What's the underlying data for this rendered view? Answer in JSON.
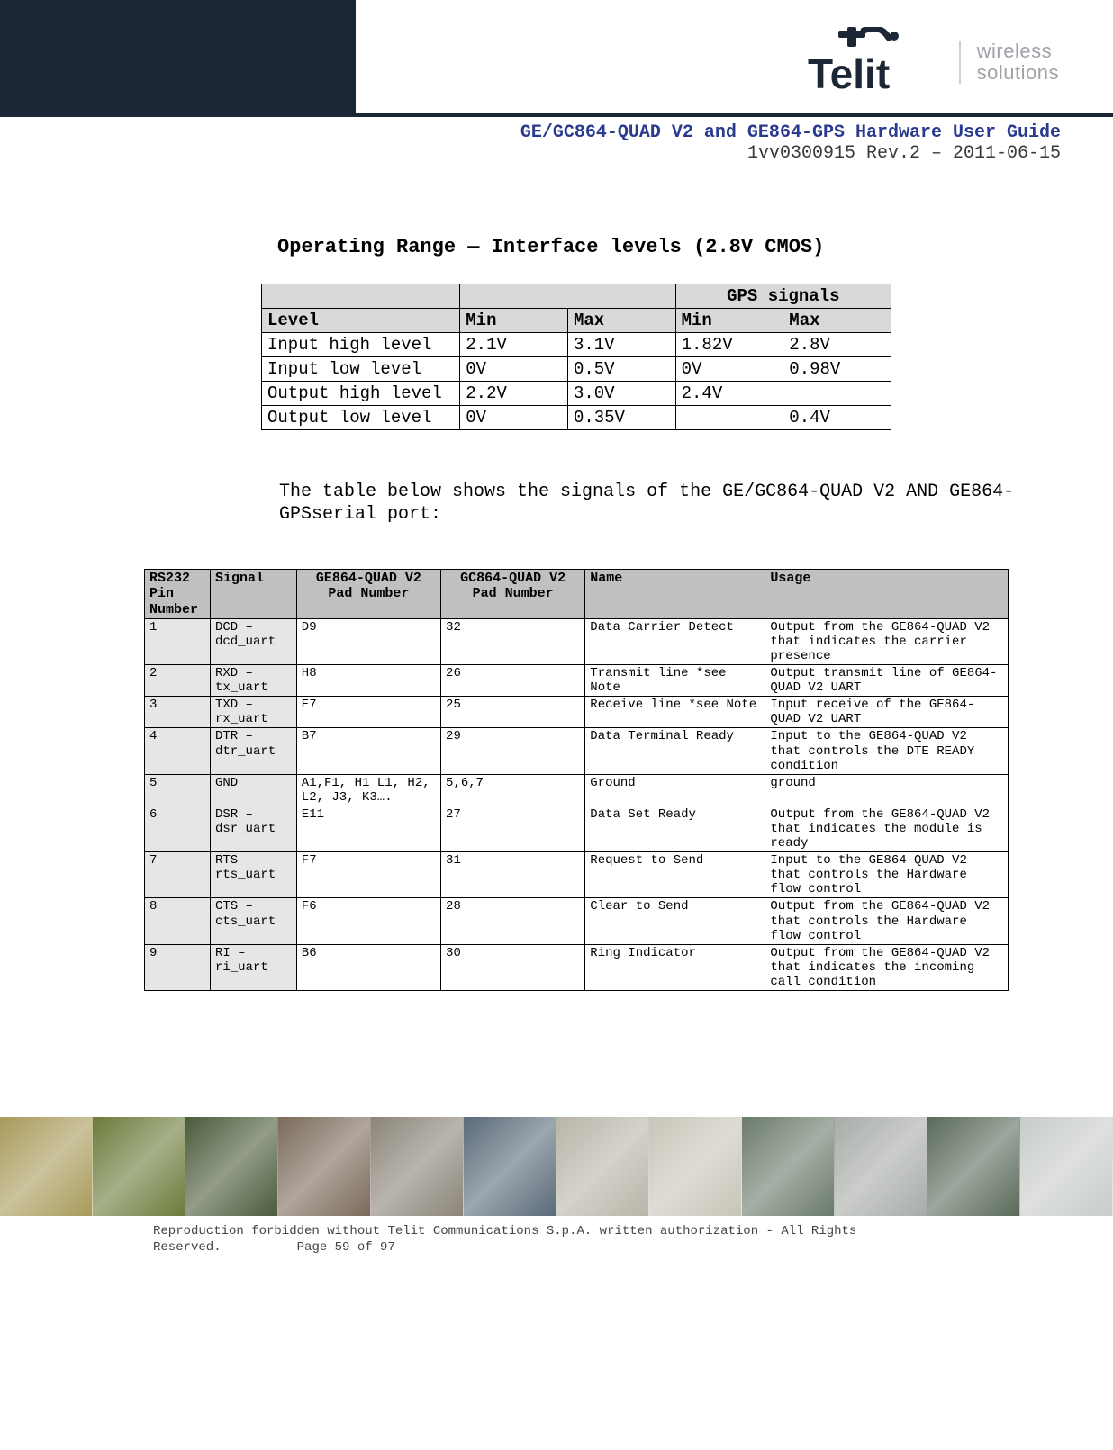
{
  "header": {
    "logo_name": "Telit",
    "logo_tagline_line1": "wireless",
    "logo_tagline_line2": "solutions",
    "title_line1": "GE/GC864-QUAD V2 and GE864-GPS Hardware User Guide",
    "title_line2": "1vv0300915 Rev.2 – 2011-06-15"
  },
  "section_title": "Operating Range — Interface levels (2.8V CMOS)",
  "table1": {
    "gps_header": "GPS signals",
    "columns": [
      "Level",
      "Min",
      "Max",
      "Min",
      "Max"
    ],
    "rows": [
      [
        "Input high level",
        "2.1V",
        "3.1V",
        "1.82V",
        "2.8V"
      ],
      [
        "Input low level",
        "0V",
        "0.5V",
        "0V",
        "0.98V"
      ],
      [
        "Output high level",
        "2.2V",
        "3.0V",
        "2.4V",
        ""
      ],
      [
        "Output low level",
        "0V",
        "0.35V",
        "",
        "0.4V"
      ]
    ]
  },
  "paragraph": "The table below shows the signals of the GE/GC864-QUAD V2 AND GE864-GPSserial port:",
  "table2": {
    "columns": [
      "RS232 Pin Number",
      "Signal",
      "GE864-QUAD V2 Pad Number",
      "GC864-QUAD V2 Pad Number",
      "Name",
      "Usage"
    ],
    "rows": [
      [
        "1",
        "DCD – dcd_uart",
        "D9",
        "32",
        "Data Carrier Detect",
        "Output from the GE864-QUAD V2 that indicates the carrier presence"
      ],
      [
        "2",
        "RXD – tx_uart",
        "H8",
        "26",
        "Transmit line *see Note",
        "Output transmit line of GE864-QUAD V2 UART"
      ],
      [
        "3",
        "TXD – rx_uart",
        "E7",
        "25",
        "Receive line *see Note",
        "Input receive of the GE864-QUAD V2 UART"
      ],
      [
        "4",
        "DTR – dtr_uart",
        "B7",
        "29",
        "Data Terminal Ready",
        "Input to the GE864-QUAD V2 that controls the DTE READY condition"
      ],
      [
        "5",
        "GND",
        "A1,F1, H1 L1, H2, L2, J3, K3….",
        "5,6,7",
        "Ground",
        "ground"
      ],
      [
        "6",
        "DSR – dsr_uart",
        "E11",
        "27",
        "Data Set Ready",
        "Output from the GE864-QUAD V2 that indicates the module is ready"
      ],
      [
        "7",
        "RTS – rts_uart",
        "F7",
        "31",
        "Request to Send",
        "Input to the GE864-QUAD V2 that controls the Hardware flow control"
      ],
      [
        "8",
        "CTS – cts_uart",
        "F6",
        "28",
        "Clear to Send",
        "Output from the GE864-QUAD V2 that controls the Hardware flow control"
      ],
      [
        "9",
        "RI – ri_uart",
        "B6",
        "30",
        "Ring Indicator",
        "Output from the GE864-QUAD V2 that indicates the incoming call condition"
      ]
    ]
  },
  "footer_strip_colors": [
    "#a89a5a",
    "#6b7b3a",
    "#4a5a3a",
    "#7a6a5a",
    "#8a8478",
    "#5a6a78",
    "#b8b4a8",
    "#c8c4b8",
    "#6a7a6a",
    "#a8aca8",
    "#5a6a5a",
    "#c8ccc8"
  ],
  "footer": {
    "line1": "Reproduction forbidden without Telit Communications S.p.A. written authorization - All Rights",
    "reserved": "Reserved.",
    "page_label": "Page 59 of 97"
  }
}
